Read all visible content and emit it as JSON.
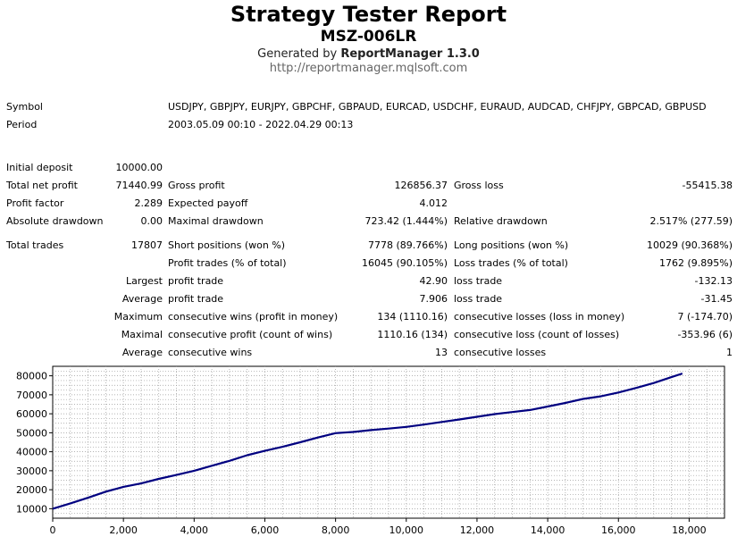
{
  "header": {
    "title": "Strategy Tester Report",
    "expert": "MSZ-006LR",
    "generated_prefix": "Generated by ",
    "generated_tool": "ReportManager 1.3.0",
    "url": "http://reportmanager.mqlsoft.com"
  },
  "info": {
    "symbol_label": "Symbol",
    "symbol_value": "USDJPY, GBPJPY, EURJPY, GBPCHF, GBPAUD, EURCAD, USDCHF, EURAUD, AUDCAD, CHFJPY, GBPCAD, GBPUSD",
    "period_label": "Period",
    "period_value": "2003.05.09 00:10 - 2022.04.29 00:13"
  },
  "stats": {
    "initial_deposit_label": "Initial deposit",
    "initial_deposit": "10000.00",
    "total_net_profit_label": "Total net profit",
    "total_net_profit": "71440.99",
    "gross_profit_label": "Gross profit",
    "gross_profit": "126856.37",
    "gross_loss_label": "Gross loss",
    "gross_loss": "-55415.38",
    "profit_factor_label": "Profit factor",
    "profit_factor": "2.289",
    "expected_payoff_label": "Expected payoff",
    "expected_payoff": "4.012",
    "absolute_drawdown_label": "Absolute drawdown",
    "absolute_drawdown": "0.00",
    "maximal_drawdown_label": "Maximal drawdown",
    "maximal_drawdown": "723.42 (1.444%)",
    "relative_drawdown_label": "Relative drawdown",
    "relative_drawdown": "2.517% (277.59)",
    "total_trades_label": "Total trades",
    "total_trades": "17807",
    "short_positions_label": "Short positions (won %)",
    "short_positions": "7778 (89.766%)",
    "long_positions_label": "Long positions (won %)",
    "long_positions": "10029 (90.368%)",
    "profit_trades_label": "Profit trades (% of total)",
    "profit_trades": "16045 (90.105%)",
    "loss_trades_label": "Loss trades (% of total)",
    "loss_trades": "1762 (9.895%)",
    "largest_label": "Largest",
    "largest_profit_label": "profit trade",
    "largest_profit": "42.90",
    "largest_loss_label": "loss trade",
    "largest_loss": "-132.13",
    "average_label": "Average",
    "average_profit_label": "profit trade",
    "average_profit": "7.906",
    "average_loss_label": "loss trade",
    "average_loss": "-31.45",
    "maximum_label": "Maximum",
    "max_consec_wins_label": "consecutive wins (profit in money)",
    "max_consec_wins": "134 (1110.16)",
    "max_consec_losses_label": "consecutive losses (loss in money)",
    "max_consec_losses": "7 (-174.70)",
    "maximal_label": "Maximal",
    "maximal_consec_profit_label": "consecutive profit (count of wins)",
    "maximal_consec_profit": "1110.16 (134)",
    "maximal_consec_loss_label": "consecutive loss (count of losses)",
    "maximal_consec_loss": "-353.96 (6)",
    "average2_label": "Average",
    "avg_consec_wins_label": "consecutive wins",
    "avg_consec_wins": "13",
    "avg_consec_losses_label": "consecutive losses",
    "avg_consec_losses": "1"
  },
  "chart_data": {
    "type": "line",
    "xlim": [
      0,
      19000
    ],
    "ylim": [
      5000,
      85000
    ],
    "x_ticks": [
      "0",
      "2,000",
      "4,000",
      "6,000",
      "8,000",
      "10,000",
      "12,000",
      "14,000",
      "16,000",
      "18,000"
    ],
    "x_tick_values": [
      0,
      2000,
      4000,
      6000,
      8000,
      10000,
      12000,
      14000,
      16000,
      18000
    ],
    "y_ticks": [
      "10000",
      "20000",
      "30000",
      "40000",
      "50000",
      "60000",
      "70000",
      "80000"
    ],
    "y_tick_values": [
      10000,
      20000,
      30000,
      40000,
      50000,
      60000,
      70000,
      80000
    ],
    "grid": true,
    "line_color": "#000080",
    "series": [
      {
        "x": [
          0,
          500,
          1000,
          1500,
          2000,
          2500,
          3000,
          3500,
          4000,
          4500,
          5000,
          5500,
          6000,
          6500,
          7000,
          7500,
          8000,
          8500,
          9000,
          9500,
          10000,
          10500,
          11000,
          11500,
          12000,
          12500,
          13000,
          13500,
          14000,
          14500,
          15000,
          15500,
          16000,
          16500,
          17000,
          17500,
          17807
        ],
        "y": [
          10000,
          12800,
          15800,
          19000,
          21500,
          23300,
          25700,
          27800,
          30000,
          32600,
          35200,
          38200,
          40500,
          42600,
          45000,
          47500,
          49800,
          50400,
          51400,
          52200,
          53100,
          54300,
          55700,
          57000,
          58400,
          59800,
          60900,
          62000,
          63800,
          65700,
          67800,
          69200,
          71200,
          73600,
          76200,
          79300,
          81200
        ]
      }
    ]
  }
}
